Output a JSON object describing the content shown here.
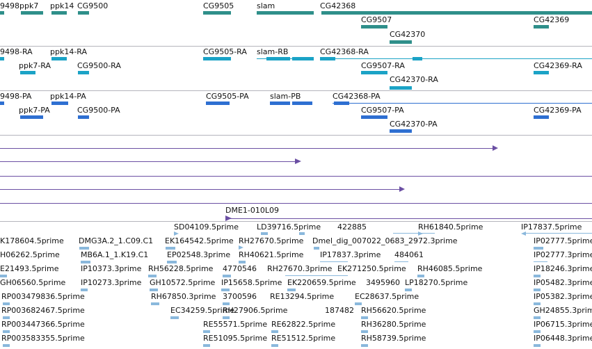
{
  "colors": {
    "gene": "#2f8f8a",
    "transcript": "#1ba3c6",
    "protein": "#2e6fd1",
    "clone": "#6b4fa3",
    "est": "#8ab8dc",
    "separator": "#b4b4bc"
  },
  "tracks": {
    "genes": {
      "labels": [
        "9498",
        "ppk7",
        "ppk14",
        "CG9500",
        "CG9505",
        "slam",
        "CG42368",
        "CG9507",
        "CG42369",
        "CG42370"
      ]
    },
    "transcripts": {
      "labels": [
        "9498-RA",
        "ppk14-RA",
        "ppk7-RA",
        "CG9500-RA",
        "CG9505-RA",
        "slam-RB",
        "CG42368-RA",
        "CG9507-RA",
        "CG42369-RA",
        "CG42370-RA"
      ]
    },
    "proteins": {
      "labels": [
        "9498-PA",
        "ppk14-PA",
        "ppk7-PA",
        "CG9500-PA",
        "CG9505-PA",
        "slam-PB",
        "CG42368-PA",
        "CG9507-PA",
        "CG42369-PA",
        "CG42370-PA"
      ]
    },
    "clones": {
      "label": "DME1-010L09"
    },
    "ests": {
      "labels": [
        "SD04109.5prime",
        "LD39716.5prime",
        "422885",
        "RH61840.5prime",
        "IP17837.5prime",
        "K178604.5prime",
        "DMG3A.2_1.C09.C1",
        "EK164542.5prime",
        "RH27670.5prime",
        "Dmel_dig_007022_0683_2972.3prime",
        "IP02777.5prime",
        "H06262.5prime",
        "MB6A.1_1.K19.C1",
        "EP02548.3prime",
        "RH40621.5prime",
        "IP17837.3prime",
        "484061",
        "IP02777.3prime",
        "E21493.5prime",
        "IP10373.3prime",
        "RH56228.5prime",
        "4770546",
        "RH27670.3prime",
        "EK271250.5prime",
        "RH46085.5prime",
        "IP18246.3prime",
        "GH06560.5prime",
        "IP10273.3prime",
        "GH10572.5prime",
        "IP15658.5prime",
        "EK220659.5prime",
        "3495960",
        "LP18270.5prime",
        "IP05482.3prime",
        "RP003479836.5prime",
        "RH67850.3prime",
        "3700596",
        "RE13294.5prime",
        "EC28637.5prime",
        "IP05382.3prime",
        "RP003682467.5prime",
        "EC34259.5prime",
        "RH27906.5prime",
        "187482",
        "RH56620.5prime",
        "GH24855.3prime",
        "RP003447366.5prime",
        "RE55571.5prime",
        "RE62822.5prime",
        "RH36280.5prime",
        "IP06715.3prime",
        "RP003583355.5prime",
        "RE51095.5prime",
        "RE51512.5prime",
        "RH58739.5prime",
        "IP06448.3prime"
      ]
    }
  }
}
